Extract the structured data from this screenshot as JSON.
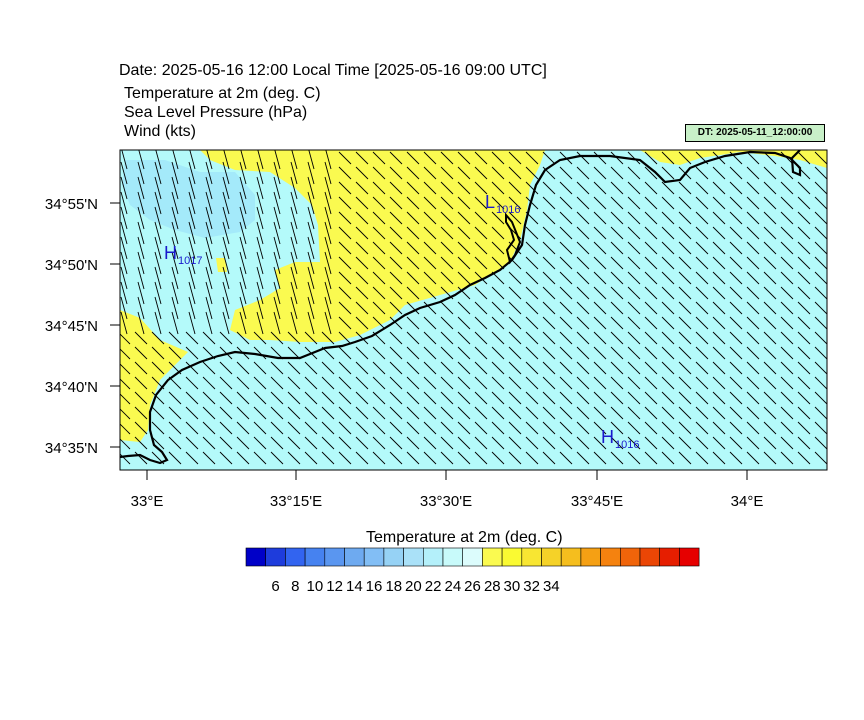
{
  "header": {
    "date_line": "Date: 2025-05-16  12:00 Local Time [2025-05-16  09:00 UTC]",
    "field1": "Temperature at 2m   (deg. C)",
    "field2": "Sea Level Pressure   (hPa)",
    "field3": "Wind   (kts)",
    "dt_label": "DT: 2025-05-11_12:00:00"
  },
  "map": {
    "lat_labels": [
      "34°55'N",
      "34°50'N",
      "34°45'N",
      "34°40'N",
      "34°35'N"
    ],
    "lon_labels": [
      "33°E",
      "33°15'E",
      "33°30'E",
      "33°45'E",
      "34°E"
    ],
    "pressure_centers": [
      {
        "type": "H",
        "value": "1017"
      },
      {
        "type": "L",
        "value": "1016"
      },
      {
        "type": "H",
        "value": "1016"
      }
    ],
    "colors": {
      "sea": "#b4fafa",
      "warm": "#fafa50",
      "cool": "#a0e6fa",
      "coast": "#000000",
      "marker": "#1a1acc"
    }
  },
  "colorbar": {
    "title": "Temperature at 2m  (deg. C)",
    "labels": [
      "6",
      "8",
      "10",
      "12",
      "14",
      "16",
      "18",
      "20",
      "22",
      "24",
      "26",
      "28",
      "30",
      "32",
      "34"
    ],
    "colors": [
      "#0000c8",
      "#1e3cdc",
      "#3264f0",
      "#4682f0",
      "#5a96f0",
      "#6eaaf0",
      "#82bef5",
      "#96d2f5",
      "#aae1f8",
      "#b4f0fa",
      "#c8fafa",
      "#dcfcfc",
      "#fafa50",
      "#fafa32",
      "#f8e632",
      "#f5d228",
      "#f5be1e",
      "#f5a014",
      "#f5820f",
      "#f0640a",
      "#eb4605",
      "#e61e00",
      "#e60000"
    ]
  }
}
